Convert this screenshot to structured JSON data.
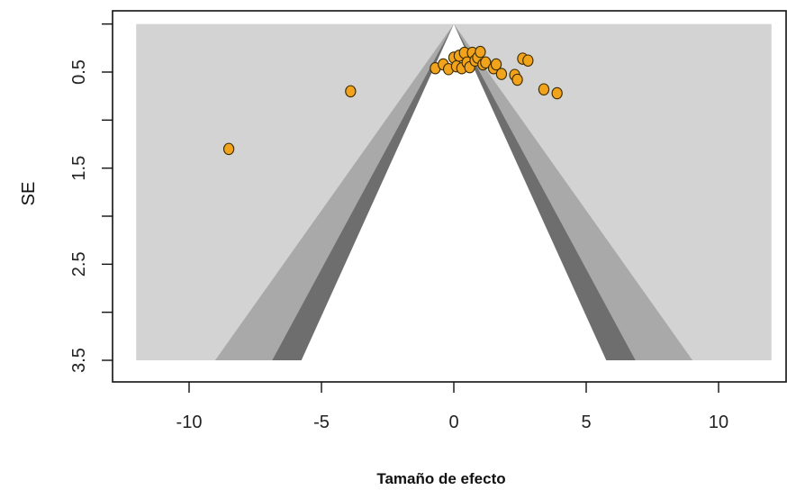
{
  "chart_data": {
    "type": "scatter",
    "subtype": "contour-enhanced funnel plot",
    "xlabel": "Tamaño de efecto",
    "ylabel": "SE",
    "xlim": [
      -12,
      12
    ],
    "ylim": [
      3.5,
      0.0
    ],
    "y_reversed": true,
    "x_ticks": [
      -10,
      -5,
      0,
      5,
      10
    ],
    "x_tick_labels": [
      "-10",
      "-5",
      "0",
      "5",
      "10"
    ],
    "y_ticks": [
      0.5,
      1.5,
      2.5,
      3.5
    ],
    "y_tick_labels": [
      "0.5",
      "1.5",
      "2.5",
      "3.5"
    ],
    "funnel_center": 0,
    "contour_z": [
      1.645,
      1.96,
      2.576
    ],
    "colors": {
      "background": "#d3d3d3",
      "contour_outer": "#a9a9a9",
      "contour_inner": "#6e6e6e",
      "funnel_interior": "#ffffff",
      "point_fill": "#f2a31c",
      "point_stroke": "#3a2a00"
    },
    "points": [
      {
        "x": -8.5,
        "y": 1.3
      },
      {
        "x": -3.9,
        "y": 0.7
      },
      {
        "x": -0.7,
        "y": 0.46
      },
      {
        "x": -0.4,
        "y": 0.42
      },
      {
        "x": -0.2,
        "y": 0.47
      },
      {
        "x": 0.0,
        "y": 0.35
      },
      {
        "x": 0.1,
        "y": 0.44
      },
      {
        "x": 0.2,
        "y": 0.33
      },
      {
        "x": 0.3,
        "y": 0.46
      },
      {
        "x": 0.4,
        "y": 0.3
      },
      {
        "x": 0.5,
        "y": 0.4
      },
      {
        "x": 0.6,
        "y": 0.45
      },
      {
        "x": 0.7,
        "y": 0.3
      },
      {
        "x": 0.8,
        "y": 0.38
      },
      {
        "x": 0.9,
        "y": 0.35
      },
      {
        "x": 1.0,
        "y": 0.29
      },
      {
        "x": 1.1,
        "y": 0.42
      },
      {
        "x": 1.2,
        "y": 0.4
      },
      {
        "x": 1.5,
        "y": 0.46
      },
      {
        "x": 1.6,
        "y": 0.42
      },
      {
        "x": 1.8,
        "y": 0.52
      },
      {
        "x": 2.3,
        "y": 0.53
      },
      {
        "x": 2.4,
        "y": 0.58
      },
      {
        "x": 2.6,
        "y": 0.36
      },
      {
        "x": 2.8,
        "y": 0.38
      },
      {
        "x": 3.4,
        "y": 0.68
      },
      {
        "x": 3.9,
        "y": 0.72
      }
    ]
  }
}
